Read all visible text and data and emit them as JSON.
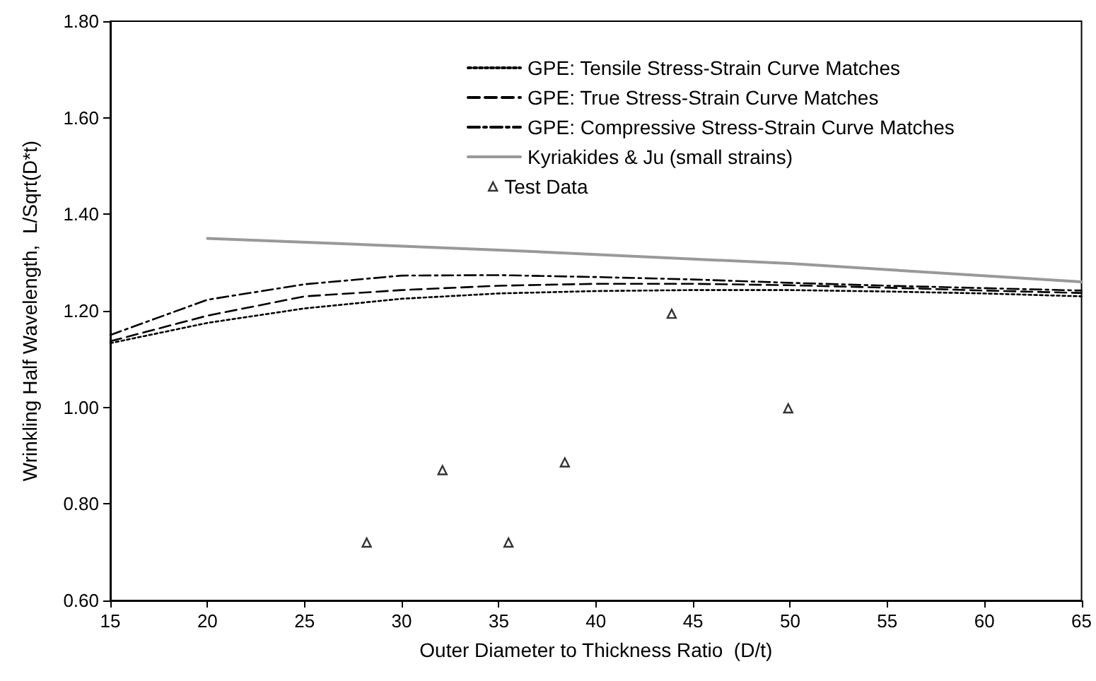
{
  "chart_data": {
    "type": "line",
    "xlabel": "Outer Diameter to Thickness Ratio  (D/t)",
    "ylabel": "Wrinkling Half Wavelength,  L/Sqrt(D*t)",
    "xlim": [
      15,
      65
    ],
    "xticks": [
      15,
      20,
      25,
      30,
      35,
      40,
      45,
      50,
      55,
      60,
      65
    ],
    "ylim": [
      0.6,
      1.8
    ],
    "yticks": [
      {
        "value": 0.6,
        "label": "0.60"
      },
      {
        "value": 0.8,
        "label": "0.80"
      },
      {
        "value": 1.0,
        "label": "1.00"
      },
      {
        "value": 1.2,
        "label": "1.20"
      },
      {
        "value": 1.4,
        "label": "1.40"
      },
      {
        "value": 1.6,
        "label": "1.60"
      },
      {
        "value": 1.8,
        "label": "1.80"
      }
    ],
    "grid": false,
    "legend": "top right",
    "marker": "none",
    "series": [
      {
        "name": "GPE: Tensile Stress-Strain Curve Matches",
        "color": "#000000",
        "line_style": "dotted",
        "x": [
          15,
          20,
          25,
          30,
          35,
          40,
          45,
          50,
          55,
          60,
          65
        ],
        "values": [
          1.133,
          1.175,
          1.205,
          1.225,
          1.236,
          1.241,
          1.243,
          1.243,
          1.24,
          1.236,
          1.23
        ]
      },
      {
        "name": "GPE: True Stress-Strain Curve Matches",
        "color": "#000000",
        "line_style": "dashed",
        "x": [
          15,
          20,
          25,
          30,
          35,
          40,
          45,
          50,
          55,
          60,
          65
        ],
        "values": [
          1.137,
          1.19,
          1.23,
          1.243,
          1.252,
          1.256,
          1.256,
          1.253,
          1.248,
          1.242,
          1.237
        ]
      },
      {
        "name": "GPE: Compressive Stress-Strain Curve Matches",
        "color": "#000000",
        "line_style": "dashdot",
        "x": [
          15,
          20,
          25,
          30,
          35,
          40,
          45,
          50,
          55,
          60,
          65
        ],
        "values": [
          1.15,
          1.223,
          1.255,
          1.273,
          1.274,
          1.27,
          1.265,
          1.258,
          1.252,
          1.247,
          1.242
        ]
      },
      {
        "name": "Kyriakides & Ju (small strains)",
        "color": "#999999",
        "line_style": "solid",
        "x": [
          20,
          35,
          50,
          65
        ],
        "values": [
          1.35,
          1.326,
          1.298,
          1.26
        ]
      },
      {
        "name": "Test Data",
        "type": "scatter",
        "marker": "triangle",
        "color": "#000000",
        "x": [
          28.2,
          32.1,
          35.5,
          38.4,
          43.9,
          49.9
        ],
        "values": [
          0.72,
          0.87,
          0.72,
          0.886,
          1.194,
          0.998
        ]
      }
    ]
  }
}
